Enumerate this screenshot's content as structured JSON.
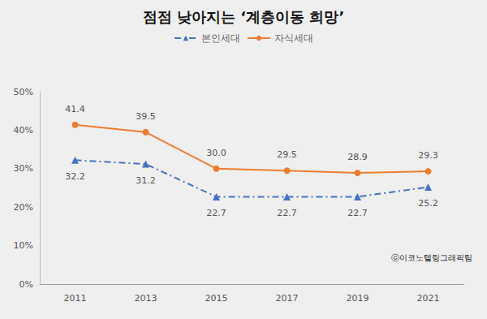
{
  "chart_data": {
    "type": "line",
    "title": "점점 낮아지는 ‘계층이동 희망’",
    "annotation": "ⓒ이코노텔링그래픽팀",
    "categories": [
      "2011",
      "2013",
      "2015",
      "2017",
      "2019",
      "2021"
    ],
    "series": [
      {
        "name": "본인세대",
        "color": "#4472c4",
        "marker": "triangle",
        "line_style": "dashdot",
        "values": [
          32.2,
          31.2,
          22.7,
          22.7,
          22.7,
          25.2
        ]
      },
      {
        "name": "자식세대",
        "color": "#ed7d31",
        "marker": "circle",
        "line_style": "solid",
        "values": [
          41.4,
          39.5,
          30.0,
          29.5,
          28.9,
          29.3
        ],
        "value_labels": [
          "41.4",
          "39.5",
          "30.0",
          "29.5",
          "28.9",
          "29.3"
        ]
      }
    ],
    "ylim": [
      0,
      50
    ],
    "yticks": [
      {
        "value": 0,
        "label": "0%"
      },
      {
        "value": 10,
        "label": "10%"
      },
      {
        "value": 20,
        "label": "20%"
      },
      {
        "value": 30,
        "label": "30%"
      },
      {
        "value": 40,
        "label": "40%"
      },
      {
        "value": 50,
        "label": "50%"
      }
    ],
    "grid": false,
    "legend": "top",
    "data_labels": true
  }
}
